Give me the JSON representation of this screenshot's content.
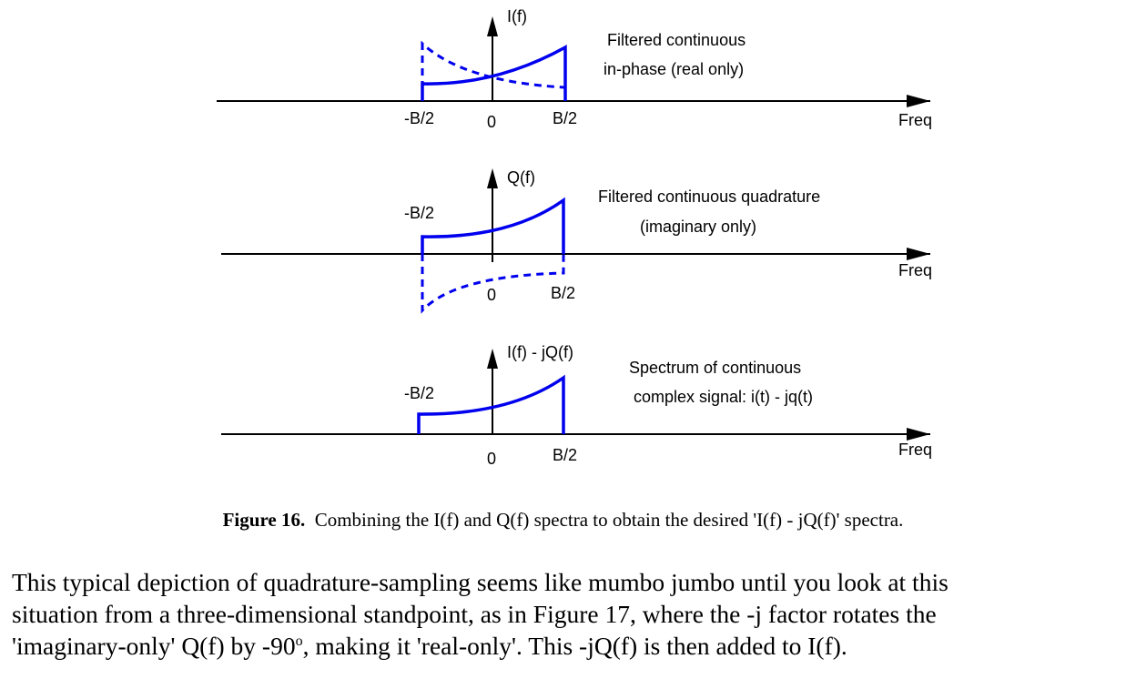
{
  "panels": [
    {
      "id": "in-phase",
      "axis_label": "I(f)",
      "freq_label": "Freq",
      "neg_label": "-B/2",
      "zero_label": "0",
      "pos_label": "B/2",
      "description": [
        "Filtered continuous",
        "in-phase (real only)"
      ]
    },
    {
      "id": "quadrature",
      "axis_label": "Q(f)",
      "freq_label": "Freq",
      "neg_label": "-B/2",
      "zero_label": "0",
      "pos_label": "B/2",
      "description": [
        "Filtered continuous quadrature",
        "(imaginary only)"
      ]
    },
    {
      "id": "complex",
      "axis_label": "I(f) - jQ(f)",
      "freq_label": "Freq",
      "neg_label": "-B/2",
      "zero_label": "0",
      "pos_label": "B/2",
      "description": [
        "Spectrum of continuous",
        "complex signal: i(t) - jq(t)"
      ]
    }
  ],
  "caption": {
    "label": "Figure 16.",
    "text": "Combining the I(f) and Q(f) spectra to obtain the desired 'I(f) - jQ(f)' spectra."
  },
  "body": {
    "line1": "This typical depiction of quadrature-sampling seems like mumbo jumbo until you look at this",
    "line2": "situation from a three-dimensional standpoint, as in Figure 17, where the -j factor rotates the",
    "line3_before": "'imaginary-only' Q(f) by -90",
    "line3_sup": "o",
    "line3_after": ", making it 'real-only'.  This -jQ(f) is then added to I(f)."
  },
  "colors": {
    "spectrum": "#0000ee",
    "axes": "#000000"
  }
}
